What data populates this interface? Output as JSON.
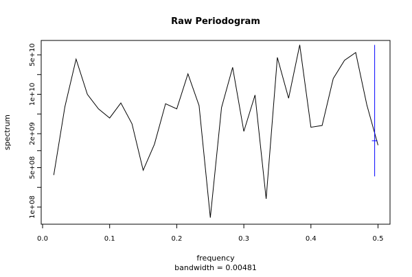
{
  "chart_data": {
    "type": "line",
    "title": "Raw Periodogram",
    "xlabel": "frequency",
    "sublabel": "bandwidth = 0.00481",
    "ylabel": "spectrum",
    "y_scale": "log",
    "xlim": [
      0.0,
      0.5
    ],
    "ylim": [
      45000000.0,
      110000000000.0
    ],
    "x_ticks": [
      {
        "value": 0.0,
        "label": "0.0"
      },
      {
        "value": 0.1,
        "label": "0.1"
      },
      {
        "value": 0.2,
        "label": "0.2"
      },
      {
        "value": 0.3,
        "label": "0.3"
      },
      {
        "value": 0.4,
        "label": "0.4"
      },
      {
        "value": 0.5,
        "label": "0.5"
      }
    ],
    "y_ticks": [
      {
        "value": 100000000.0,
        "label": "1e+08"
      },
      {
        "value": 500000000.0,
        "label": "5e+08"
      },
      {
        "value": 2000000000.0,
        "label": "2e+09"
      },
      {
        "value": 10000000000.0,
        "label": "1e+10"
      },
      {
        "value": 50000000000.0,
        "label": "5e+10"
      }
    ],
    "series": [
      {
        "color": "#000000",
        "x": [
          0.0167,
          0.0333,
          0.05,
          0.0667,
          0.0833,
          0.1,
          0.1167,
          0.1333,
          0.15,
          0.1667,
          0.1833,
          0.2,
          0.2167,
          0.2333,
          0.25,
          0.2667,
          0.2833,
          0.3,
          0.3167,
          0.3333,
          0.35,
          0.3667,
          0.3833,
          0.4,
          0.4167,
          0.4333,
          0.45,
          0.4667,
          0.4833,
          0.5
        ],
        "y": [
          370000000.0,
          6000000000.0,
          42000000000.0,
          10000000000.0,
          5500000000.0,
          3800000000.0,
          7000000000.0,
          3000000000.0,
          450000000.0,
          1300000000.0,
          6800000000.0,
          5500000000.0,
          23000000000.0,
          6300000000.0,
          65000000.0,
          5800000000.0,
          30000000000.0,
          2200000000.0,
          9700000000.0,
          140000000.0,
          45000000000.0,
          8500000000.0,
          75000000000.0,
          2600000000.0,
          2800000000.0,
          19000000000.0,
          40000000000.0,
          55000000000.0,
          6500000000.0,
          1250000000.0
        ]
      }
    ],
    "ci_bar": {
      "color": "#0000ff",
      "x": 0.495,
      "center": 1500000000.0,
      "low": 350000000.0,
      "high": 75000000000.0
    }
  }
}
